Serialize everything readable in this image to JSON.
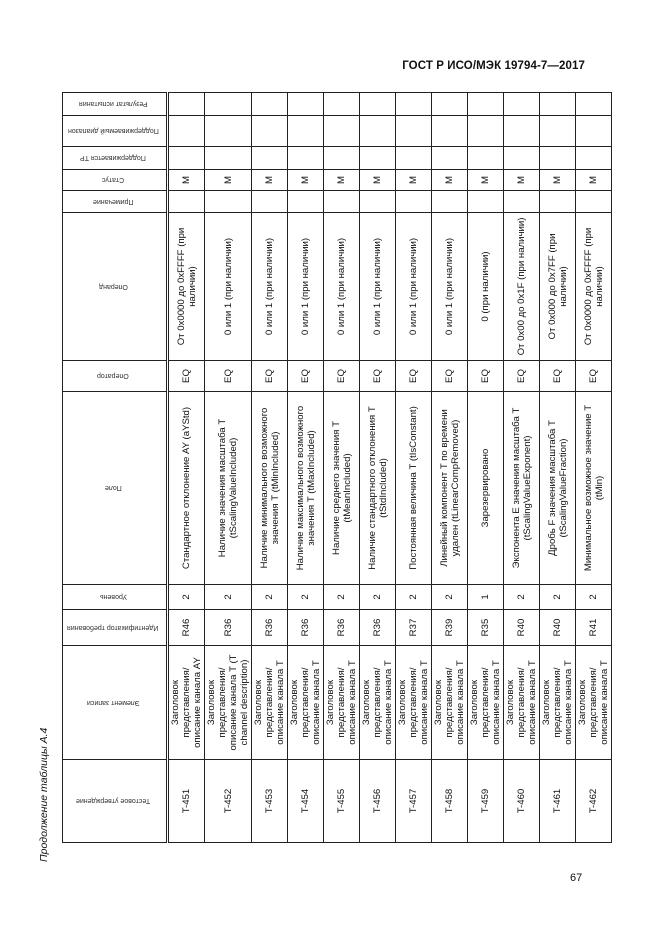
{
  "document": {
    "title": "ГОСТ Р ИСО/МЭК 19794-7—2017",
    "caption": "Продолжение таблицы А.4",
    "page_number": "67"
  },
  "table": {
    "headers": [
      "Тестовое утверждение",
      "Элемент записи",
      "Идентификатор требования",
      "Уровень",
      "Поле",
      "Оператор",
      "Операнд",
      "Примечание",
      "Статус",
      "Поддерживается ТР",
      "Поддерживаемый диапазон",
      "Результат испытания"
    ],
    "rows": [
      [
        "T-451",
        "Заголовок представления/ описание канала AY",
        "R46",
        "2",
        "Стандартное отклонение AY (aYStd)",
        "EQ",
        "От 0x0000 до 0xFFFF (при наличии)",
        "",
        "M",
        "",
        "",
        ""
      ],
      [
        "T-452",
        "Заголовок представления/ описание канала T (T channel description)",
        "R36",
        "2",
        "Наличие значения масштаба T (tScalingValueIncluded)",
        "EQ",
        "0 или 1 (при наличии)",
        "",
        "M",
        "",
        "",
        ""
      ],
      [
        "T-453",
        "Заголовок представления/ описание канала T",
        "R36",
        "2",
        "Наличие минимального возможного значения T (tMinIncluded)",
        "EQ",
        "0 или 1 (при наличии)",
        "",
        "M",
        "",
        "",
        ""
      ],
      [
        "T-454",
        "Заголовок представления/ описание канала T",
        "R36",
        "2",
        "Наличие максимального возможного значения T (tMaxIncluded)",
        "EQ",
        "0 или 1 (при наличии)",
        "",
        "M",
        "",
        "",
        ""
      ],
      [
        "T-455",
        "Заголовок представления/ описание канала T",
        "R36",
        "2",
        "Наличие среднего значения T (tMeanIncluded)",
        "EQ",
        "0 или 1 (при наличии)",
        "",
        "M",
        "",
        "",
        ""
      ],
      [
        "T-456",
        "Заголовок представления/ описание канала T",
        "R36",
        "2",
        "Наличие стандартного отклонения T (tStdIncluded)",
        "EQ",
        "0 или 1 (при наличии)",
        "",
        "M",
        "",
        "",
        ""
      ],
      [
        "T-457",
        "Заголовок представления/ описание канала T",
        "R37",
        "2",
        "Постоянная величина T (tIsConstant)",
        "EQ",
        "0 или 1 (при наличии)",
        "",
        "M",
        "",
        "",
        ""
      ],
      [
        "T-458",
        "Заголовок представления/ описание канала T",
        "R39",
        "2",
        "Линейный компонент T по времени удален (tLinearCompRemoved)",
        "EQ",
        "0 или 1 (при наличии)",
        "",
        "M",
        "",
        "",
        ""
      ],
      [
        "T-459",
        "Заголовок представления/ описание канала T",
        "R35",
        "1",
        "Зарезервировано",
        "EQ",
        "0 (при наличии)",
        "",
        "M",
        "",
        "",
        ""
      ],
      [
        "T-460",
        "Заголовок представления/ описание канала T",
        "R40",
        "2",
        "Экспонента E значения масштаба T (tScalingValueExponent)",
        "EQ",
        "От 0x00 до 0x1F (при наличии)",
        "",
        "M",
        "",
        "",
        ""
      ],
      [
        "T-461",
        "Заголовок представления/ описание канала T",
        "R40",
        "2",
        "Дробь F значения масштаба T (tScalingValueFraction)",
        "EQ",
        "От 0x000 до 0x7FF (при наличии)",
        "",
        "M",
        "",
        "",
        ""
      ],
      [
        "T-462",
        "Заголовок представления/ описание канала T",
        "R41",
        "2",
        "Минимальное возможное значение T (tMin)",
        "EQ",
        "От 0x0000 до 0xFFFF (при наличии)",
        "",
        "M",
        "",
        "",
        ""
      ]
    ]
  }
}
